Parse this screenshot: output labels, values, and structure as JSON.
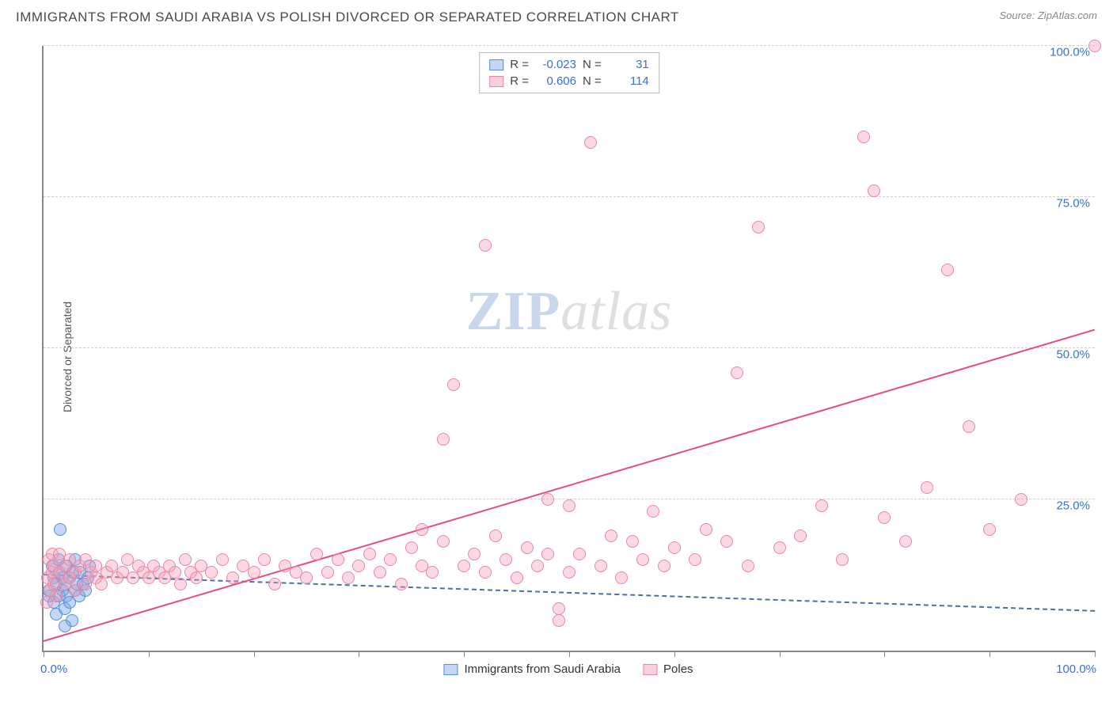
{
  "header": {
    "title": "IMMIGRANTS FROM SAUDI ARABIA VS POLISH DIVORCED OR SEPARATED CORRELATION CHART",
    "source_prefix": "Source: ",
    "source_name": "ZipAtlas.com"
  },
  "chart": {
    "type": "scatter",
    "ylabel": "Divorced or Separated",
    "xlim": [
      0,
      100
    ],
    "ylim": [
      0,
      100
    ],
    "yticks": [
      25,
      50,
      75,
      100
    ],
    "ytick_labels": [
      "25.0%",
      "50.0%",
      "75.0%",
      "100.0%"
    ],
    "xticks": [
      0,
      10,
      20,
      30,
      40,
      50,
      60,
      70,
      80,
      90,
      100
    ],
    "xcorner_left": "0.0%",
    "xcorner_right": "100.0%",
    "background_color": "#ffffff",
    "grid_color": "#d0d0d0",
    "axis_color": "#888888",
    "label_color": "#3a6fd8",
    "marker_radius": 8,
    "watermark": {
      "part1": "ZIP",
      "part2": "atlas"
    },
    "series": [
      {
        "key": "a",
        "name": "Immigrants from Saudi Arabia",
        "fill": "rgba(122,168,230,0.45)",
        "stroke": "#5a8dd0",
        "R": "-0.023",
        "N": "31",
        "regression": {
          "x1": 0,
          "y1": 12.5,
          "x2": 100,
          "y2": 6.5,
          "dashed": true,
          "color": "#4a6fa5"
        },
        "points": [
          [
            0.5,
            9
          ],
          [
            0.5,
            10
          ],
          [
            0.8,
            14
          ],
          [
            1.0,
            8
          ],
          [
            1.0,
            12
          ],
          [
            1.2,
            6
          ],
          [
            1.2,
            11
          ],
          [
            1.4,
            15
          ],
          [
            1.5,
            9
          ],
          [
            1.5,
            13
          ],
          [
            1.6,
            20
          ],
          [
            1.8,
            10
          ],
          [
            1.8,
            12
          ],
          [
            2.0,
            7
          ],
          [
            2.0,
            11
          ],
          [
            2.2,
            14
          ],
          [
            2.2,
            9
          ],
          [
            2.5,
            12
          ],
          [
            2.5,
            8
          ],
          [
            2.8,
            13
          ],
          [
            3.0,
            10
          ],
          [
            3.0,
            15
          ],
          [
            3.2,
            11
          ],
          [
            3.4,
            9
          ],
          [
            3.5,
            13
          ],
          [
            3.8,
            11
          ],
          [
            4.0,
            10
          ],
          [
            4.2,
            12
          ],
          [
            4.4,
            14
          ],
          [
            2.7,
            5
          ],
          [
            2.0,
            4
          ]
        ]
      },
      {
        "key": "b",
        "name": "Poles",
        "fill": "rgba(245,160,185,0.40)",
        "stroke": "#e986a6",
        "R": "0.606",
        "N": "114",
        "regression": {
          "x1": 0,
          "y1": 1.5,
          "x2": 100,
          "y2": 53,
          "dashed": false,
          "color": "#e84c7a"
        },
        "points": [
          [
            0.3,
            8
          ],
          [
            0.4,
            12
          ],
          [
            0.5,
            15
          ],
          [
            0.6,
            10
          ],
          [
            0.8,
            13
          ],
          [
            0.8,
            16
          ],
          [
            1.0,
            11
          ],
          [
            1.0,
            14
          ],
          [
            1.2,
            9
          ],
          [
            1.5,
            13
          ],
          [
            1.5,
            16
          ],
          [
            2.0,
            11
          ],
          [
            2.0,
            14
          ],
          [
            2.5,
            12
          ],
          [
            2.5,
            15
          ],
          [
            3.0,
            10
          ],
          [
            3.0,
            13
          ],
          [
            3.5,
            14
          ],
          [
            4.0,
            11
          ],
          [
            4.0,
            15
          ],
          [
            4.5,
            13
          ],
          [
            5.0,
            12
          ],
          [
            5.0,
            14
          ],
          [
            5.5,
            11
          ],
          [
            6.0,
            13
          ],
          [
            6.5,
            14
          ],
          [
            7.0,
            12
          ],
          [
            7.5,
            13
          ],
          [
            8.0,
            15
          ],
          [
            8.5,
            12
          ],
          [
            9.0,
            14
          ],
          [
            9.5,
            13
          ],
          [
            10,
            12
          ],
          [
            10.5,
            14
          ],
          [
            11,
            13
          ],
          [
            11.5,
            12
          ],
          [
            12,
            14
          ],
          [
            12.5,
            13
          ],
          [
            13,
            11
          ],
          [
            13.5,
            15
          ],
          [
            14,
            13
          ],
          [
            14.5,
            12
          ],
          [
            15,
            14
          ],
          [
            16,
            13
          ],
          [
            17,
            15
          ],
          [
            18,
            12
          ],
          [
            19,
            14
          ],
          [
            20,
            13
          ],
          [
            21,
            15
          ],
          [
            22,
            11
          ],
          [
            23,
            14
          ],
          [
            24,
            13
          ],
          [
            25,
            12
          ],
          [
            26,
            16
          ],
          [
            27,
            13
          ],
          [
            28,
            15
          ],
          [
            29,
            12
          ],
          [
            30,
            14
          ],
          [
            31,
            16
          ],
          [
            32,
            13
          ],
          [
            33,
            15
          ],
          [
            34,
            11
          ],
          [
            35,
            17
          ],
          [
            36,
            20
          ],
          [
            36,
            14
          ],
          [
            37,
            13
          ],
          [
            38,
            18
          ],
          [
            38,
            35
          ],
          [
            39,
            44
          ],
          [
            40,
            14
          ],
          [
            41,
            16
          ],
          [
            42,
            13
          ],
          [
            42,
            67
          ],
          [
            43,
            19
          ],
          [
            44,
            15
          ],
          [
            45,
            12
          ],
          [
            46,
            17
          ],
          [
            47,
            14
          ],
          [
            48,
            25
          ],
          [
            48,
            16
          ],
          [
            49,
            7
          ],
          [
            50,
            13
          ],
          [
            50,
            24
          ],
          [
            51,
            16
          ],
          [
            52,
            84
          ],
          [
            53,
            14
          ],
          [
            54,
            19
          ],
          [
            55,
            12
          ],
          [
            56,
            18
          ],
          [
            57,
            15
          ],
          [
            58,
            23
          ],
          [
            59,
            14
          ],
          [
            60,
            17
          ],
          [
            62,
            15
          ],
          [
            63,
            20
          ],
          [
            65,
            18
          ],
          [
            66,
            46
          ],
          [
            67,
            14
          ],
          [
            68,
            70
          ],
          [
            70,
            17
          ],
          [
            72,
            19
          ],
          [
            74,
            24
          ],
          [
            76,
            15
          ],
          [
            78,
            85
          ],
          [
            79,
            76
          ],
          [
            80,
            22
          ],
          [
            82,
            18
          ],
          [
            84,
            27
          ],
          [
            86,
            63
          ],
          [
            88,
            37
          ],
          [
            90,
            20
          ],
          [
            93,
            25
          ],
          [
            49,
            5
          ],
          [
            100,
            100
          ]
        ]
      }
    ],
    "stats_box": {
      "R_label": "R =",
      "N_label": "N ="
    },
    "bottom_legend": [
      {
        "series": "a",
        "label": "Immigrants from Saudi Arabia"
      },
      {
        "series": "b",
        "label": "Poles"
      }
    ]
  }
}
